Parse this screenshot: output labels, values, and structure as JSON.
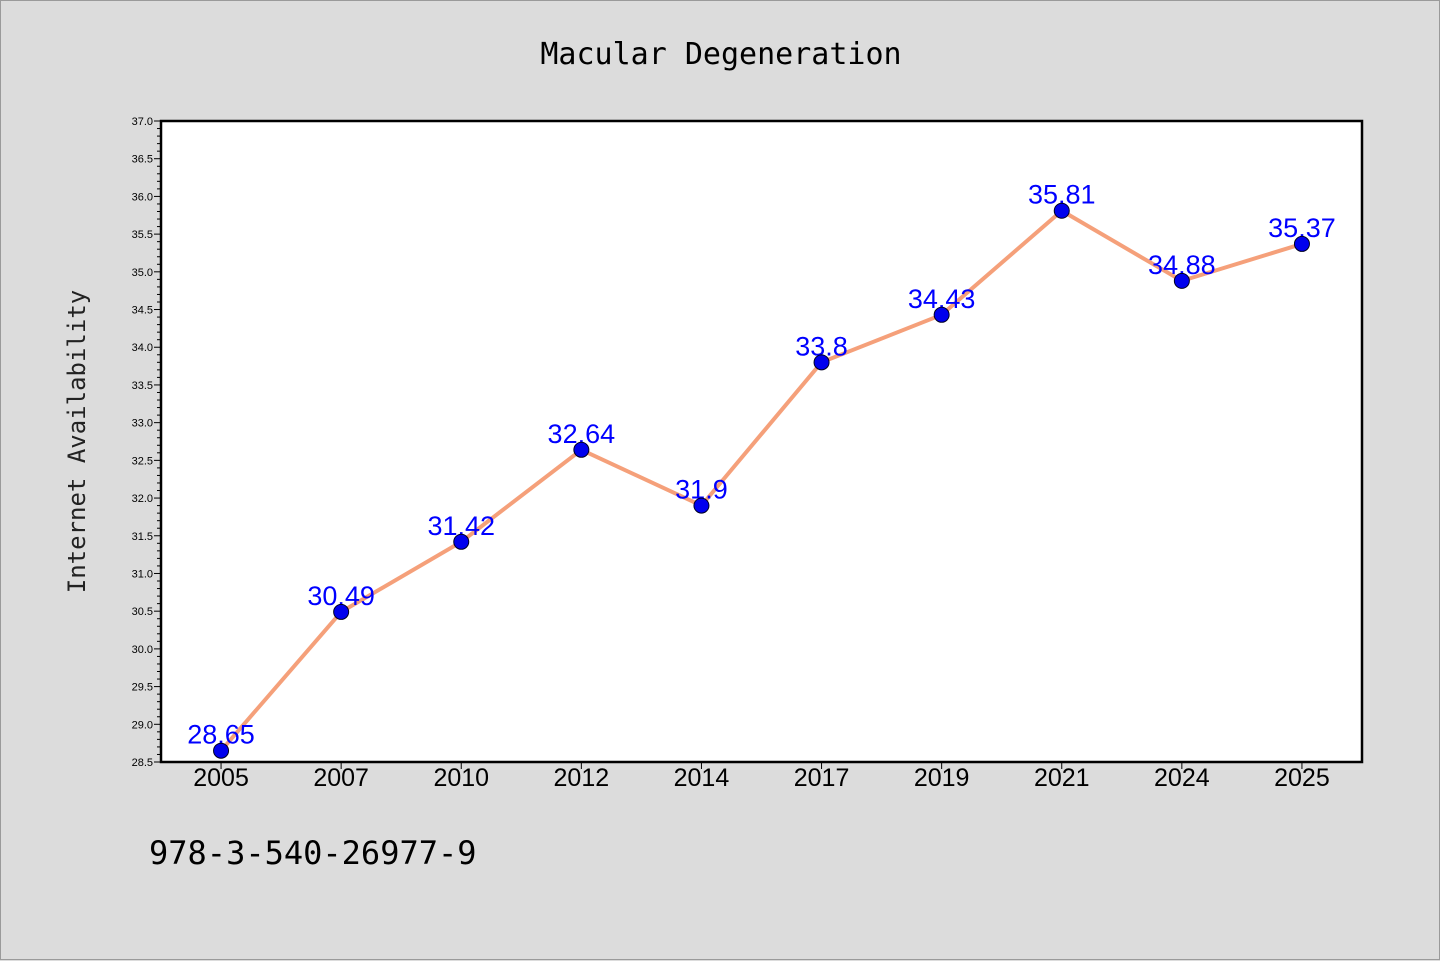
{
  "chart_data": {
    "type": "line",
    "title": "Macular Degeneration",
    "xlabel": "",
    "ylabel": "Internet Availability",
    "categories": [
      "2005",
      "2007",
      "2010",
      "2012",
      "2014",
      "2017",
      "2019",
      "2021",
      "2024",
      "2025"
    ],
    "series": [
      {
        "values": [
          28.65,
          30.49,
          31.42,
          32.64,
          31.9,
          33.8,
          34.43,
          35.81,
          34.88,
          35.37
        ],
        "data_labels": [
          "28.65",
          "30.49",
          "31.42",
          "32.64",
          "31.9",
          "33.8",
          "34.43",
          "35.81",
          "34.88",
          "35.37"
        ],
        "line_color": "#f5a07a",
        "marker_color": "#0000ee"
      }
    ],
    "ylim": [
      28.5,
      37.0
    ],
    "yticks": [
      "28.5",
      "29.0",
      "29.5",
      "30.0",
      "30.5",
      "31.0",
      "31.5",
      "32.0",
      "32.5",
      "33.0",
      "33.5",
      "34.0",
      "34.5",
      "35.0",
      "35.5",
      "36.0",
      "36.5",
      "37.0"
    ],
    "grid": false,
    "legend": "none",
    "data_label_color": "#0000ff"
  },
  "footnote": "978-3-540-26977-9"
}
